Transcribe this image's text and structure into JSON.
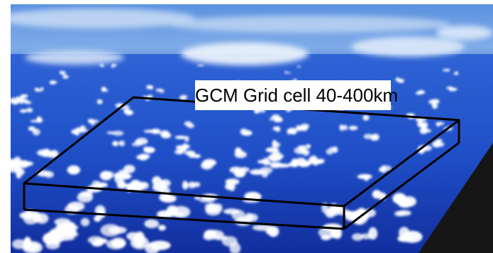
{
  "figure": {
    "label": "GCM Grid cell 40-400km",
    "colors": {
      "sky_top": "#3f7fd8",
      "sky_horizon": "#a7c6ef",
      "ocean_deep": "#0e2a9b",
      "ocean_mid": "#1d4fd0",
      "cloud": "#ffffff",
      "box_outline": "#000000",
      "wing": "#1a1a1a"
    },
    "elements": [
      "sky",
      "distant-cloud-band",
      "ocean",
      "cumulus-clouds",
      "grid-cell-box",
      "aircraft-wing"
    ]
  }
}
